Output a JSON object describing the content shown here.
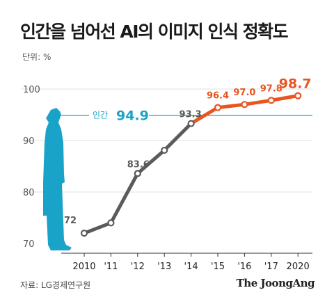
{
  "title": "인간을 넘어선 AI의 이미지 인식 정확도",
  "unit_label": "단위: %",
  "source": "자료: LG경제연구원",
  "brand": "The JoongAng",
  "chart_data": {
    "type": "line",
    "x": [
      "2010",
      "'11",
      "'12",
      "'13",
      "'14",
      "'15",
      "'16",
      "'17",
      "2020"
    ],
    "values": [
      72,
      74,
      83.6,
      88.1,
      93.3,
      96.4,
      97.0,
      97.8,
      98.7
    ],
    "data_labels": [
      "72",
      "",
      "83.6",
      "",
      "93.3",
      "96.4",
      "97.0",
      "97.8",
      "98.7"
    ],
    "ylim": [
      70,
      100
    ],
    "y_ticks": [
      "70",
      "80",
      "90",
      "100"
    ],
    "grid": true,
    "reference_line": {
      "label": "인간",
      "value": "94.9",
      "color": "#1aa3c8"
    },
    "colors": {
      "early": "#5b5b5b",
      "late": "#e8551f",
      "human": "#1aa3c8"
    },
    "highlight_from_index": 4
  }
}
